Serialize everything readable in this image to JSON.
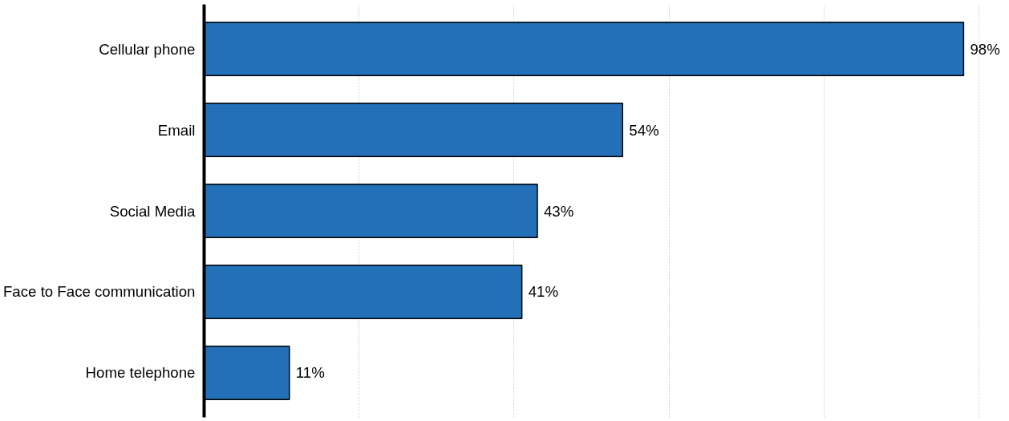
{
  "chart_data": {
    "type": "bar",
    "orientation": "horizontal",
    "categories": [
      "Cellular phone",
      "Email",
      "Social Media",
      "Face to Face communication",
      "Home telephone"
    ],
    "values": [
      98,
      54,
      43,
      41,
      11
    ],
    "value_labels": [
      "98%",
      "54%",
      "43%",
      "41%",
      "11%"
    ],
    "color": "#2470b8",
    "grid": "x",
    "tick_labels": "y"
  }
}
